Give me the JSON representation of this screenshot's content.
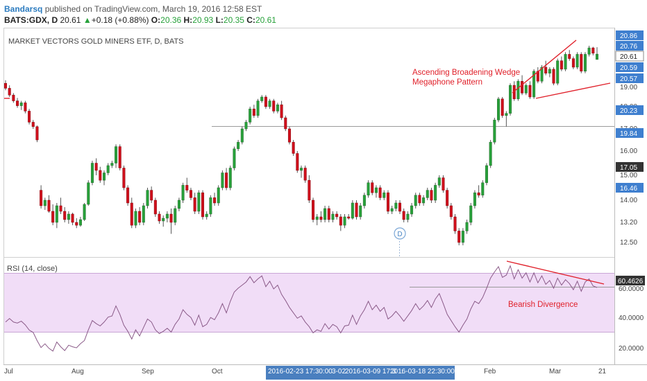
{
  "header": {
    "user": "Bandarsq",
    "published": "published on TradingView.com, March 19, 2016 12:58 EST",
    "symbol": "BATS:GDX, D",
    "last": "20.61",
    "change": "+0.18 (+0.88%)",
    "open_label": "O:",
    "open": "20.36",
    "high_label": "H:",
    "high": "20.93",
    "low_label": "L:",
    "low": "20.35",
    "close_label": "C:",
    "close": "20.61"
  },
  "colors": {
    "up": "#27a13a",
    "down": "#d0101c",
    "annotation": "#e0202a",
    "price_badge": "#3f7fcf",
    "rsi_line": "#8a5a88",
    "rsi_band": "#f1ddf7"
  },
  "chart_data": [
    {
      "type": "candlestick",
      "title": "MARKET VECTORS GOLD MINERS ETF, D, BATS",
      "y_tick_labels": [
        "12.50",
        "13.20",
        "14.00",
        "15.00",
        "16.00",
        "17.00",
        "18.00",
        "19.00"
      ],
      "x_tick_labels": [
        "Jul",
        "Aug",
        "Sep",
        "Oct",
        "Feb",
        "Mar",
        "21"
      ],
      "price_badges": [
        {
          "text": "20.86",
          "style": "blue"
        },
        {
          "text": "20.76",
          "style": "blue"
        },
        {
          "text": "20.61",
          "style": "white"
        },
        {
          "text": "20.59",
          "style": "blue"
        },
        {
          "text": "20.57",
          "style": "blue"
        },
        {
          "text": "20.23",
          "style": "blue"
        },
        {
          "text": "19.84",
          "style": "blue"
        },
        {
          "text": "17.05",
          "style": "dark"
        },
        {
          "text": "16.46",
          "style": "blue"
        }
      ],
      "annotations": [
        "Ascending Broadening Wedge",
        "Megaphone Pattern"
      ],
      "event_marker": "D",
      "time_labels": [
        "2016-02-23 17:30:00",
        "3-02",
        "2016-03-09 17:3",
        ":",
        "2016-03-18 22:30:00"
      ],
      "candles": [
        [
          19.2,
          19.35,
          18.85,
          18.95
        ],
        [
          18.95,
          19.1,
          18.5,
          18.6
        ],
        [
          18.6,
          18.7,
          18.2,
          18.3
        ],
        [
          18.3,
          18.45,
          17.95,
          18.05
        ],
        [
          18.05,
          18.3,
          17.85,
          18.2
        ],
        [
          18.2,
          18.3,
          17.7,
          17.8
        ],
        [
          17.8,
          17.9,
          17.2,
          17.3
        ],
        [
          17.3,
          17.4,
          17.0,
          17.1
        ],
        [
          17.1,
          17.15,
          16.4,
          16.5
        ],
        [
          14.4,
          14.6,
          13.7,
          13.8
        ],
        [
          13.8,
          14.1,
          13.65,
          14.0
        ],
        [
          14.0,
          14.2,
          13.55,
          13.6
        ],
        [
          13.6,
          13.85,
          13.1,
          13.2
        ],
        [
          13.2,
          13.9,
          13.0,
          13.8
        ],
        [
          13.8,
          14.1,
          13.5,
          13.6
        ],
        [
          13.6,
          13.75,
          13.2,
          13.3
        ],
        [
          13.3,
          13.6,
          13.15,
          13.5
        ],
        [
          13.5,
          13.55,
          13.1,
          13.2
        ],
        [
          13.2,
          13.35,
          13.0,
          13.1
        ],
        [
          13.1,
          13.4,
          13.05,
          13.3
        ],
        [
          13.3,
          13.9,
          13.25,
          13.85
        ],
        [
          13.85,
          14.8,
          13.8,
          14.7
        ],
        [
          14.7,
          15.6,
          14.6,
          15.5
        ],
        [
          15.5,
          15.7,
          15.0,
          15.2
        ],
        [
          15.2,
          15.35,
          14.7,
          14.8
        ],
        [
          14.8,
          15.2,
          14.6,
          15.1
        ],
        [
          15.1,
          15.5,
          15.0,
          15.4
        ],
        [
          15.4,
          15.6,
          15.3,
          15.5
        ],
        [
          15.5,
          16.3,
          15.3,
          16.2
        ],
        [
          16.2,
          16.3,
          15.2,
          15.3
        ],
        [
          15.3,
          15.4,
          14.4,
          14.5
        ],
        [
          14.5,
          14.6,
          13.8,
          13.9
        ],
        [
          13.9,
          14.1,
          13.0,
          13.1
        ],
        [
          13.1,
          13.7,
          13.0,
          13.6
        ],
        [
          13.6,
          13.75,
          13.1,
          13.2
        ],
        [
          13.2,
          13.9,
          13.1,
          13.8
        ],
        [
          13.8,
          14.5,
          13.7,
          14.4
        ],
        [
          14.4,
          14.55,
          13.9,
          14.0
        ],
        [
          14.0,
          14.1,
          13.4,
          13.5
        ],
        [
          13.5,
          13.6,
          13.15,
          13.25
        ],
        [
          13.25,
          13.45,
          13.05,
          13.35
        ],
        [
          13.35,
          13.6,
          13.2,
          13.5
        ],
        [
          13.5,
          13.7,
          12.8,
          13.2
        ],
        [
          13.2,
          13.8,
          13.1,
          13.7
        ],
        [
          13.7,
          14.1,
          13.6,
          14.0
        ],
        [
          14.0,
          14.7,
          13.9,
          14.6
        ],
        [
          14.6,
          14.9,
          14.3,
          14.4
        ],
        [
          14.4,
          14.5,
          14.0,
          14.1
        ],
        [
          14.1,
          14.3,
          13.5,
          13.6
        ],
        [
          13.6,
          14.4,
          13.5,
          14.3
        ],
        [
          14.3,
          14.4,
          13.3,
          13.4
        ],
        [
          13.4,
          13.6,
          13.3,
          13.5
        ],
        [
          13.5,
          14.2,
          13.4,
          14.1
        ],
        [
          14.1,
          14.3,
          13.8,
          13.9
        ],
        [
          13.9,
          14.6,
          13.8,
          14.5
        ],
        [
          14.5,
          15.2,
          14.4,
          15.1
        ],
        [
          15.1,
          15.3,
          14.4,
          14.5
        ],
        [
          14.5,
          15.4,
          14.4,
          15.3
        ],
        [
          15.3,
          16.2,
          15.2,
          16.1
        ],
        [
          16.1,
          16.5,
          16.0,
          16.4
        ],
        [
          16.4,
          17.1,
          16.3,
          17.0
        ],
        [
          17.0,
          17.4,
          16.9,
          17.3
        ],
        [
          17.3,
          18.0,
          17.2,
          17.9
        ],
        [
          17.9,
          18.1,
          17.5,
          17.6
        ],
        [
          17.6,
          18.4,
          17.5,
          18.3
        ],
        [
          18.3,
          18.6,
          18.2,
          18.5
        ],
        [
          18.5,
          18.6,
          17.9,
          18.0
        ],
        [
          18.0,
          18.4,
          17.9,
          18.3
        ],
        [
          18.3,
          18.4,
          17.7,
          17.8
        ],
        [
          17.8,
          18.2,
          17.7,
          18.1
        ],
        [
          18.1,
          18.3,
          17.4,
          17.5
        ],
        [
          17.5,
          17.6,
          16.9,
          17.0
        ],
        [
          17.0,
          17.1,
          16.3,
          16.4
        ],
        [
          16.4,
          16.5,
          15.8,
          15.9
        ],
        [
          15.9,
          16.0,
          15.1,
          15.2
        ],
        [
          15.2,
          15.4,
          14.9,
          15.3
        ],
        [
          15.3,
          15.4,
          14.7,
          14.8
        ],
        [
          14.8,
          15.0,
          13.9,
          14.0
        ],
        [
          14.0,
          14.1,
          13.2,
          13.3
        ],
        [
          13.3,
          13.5,
          13.1,
          13.4
        ],
        [
          13.4,
          13.6,
          13.2,
          13.3
        ],
        [
          13.3,
          13.8,
          13.2,
          13.7
        ],
        [
          13.7,
          13.8,
          13.2,
          13.3
        ],
        [
          13.3,
          13.6,
          13.2,
          13.5
        ],
        [
          13.5,
          13.6,
          13.3,
          13.4
        ],
        [
          13.4,
          13.5,
          12.9,
          13.1
        ],
        [
          13.1,
          13.5,
          13.0,
          13.4
        ],
        [
          13.4,
          13.5,
          13.3,
          13.35
        ],
        [
          13.35,
          14.0,
          13.3,
          13.9
        ],
        [
          13.9,
          14.0,
          13.3,
          13.4
        ],
        [
          13.4,
          13.9,
          13.3,
          13.8
        ],
        [
          13.8,
          14.3,
          13.7,
          14.2
        ],
        [
          14.2,
          14.8,
          14.1,
          14.7
        ],
        [
          14.7,
          14.8,
          14.2,
          14.3
        ],
        [
          14.3,
          14.6,
          14.1,
          14.5
        ],
        [
          14.5,
          14.6,
          14.0,
          14.1
        ],
        [
          14.1,
          14.4,
          14.0,
          14.3
        ],
        [
          14.3,
          14.4,
          13.5,
          13.6
        ],
        [
          13.6,
          13.8,
          13.5,
          13.7
        ],
        [
          13.7,
          14.0,
          13.6,
          13.9
        ],
        [
          13.9,
          14.0,
          13.5,
          13.6
        ],
        [
          13.6,
          13.7,
          13.2,
          13.3
        ],
        [
          13.3,
          13.6,
          13.2,
          13.5
        ],
        [
          13.5,
          13.9,
          13.4,
          13.8
        ],
        [
          13.8,
          14.3,
          13.7,
          14.2
        ],
        [
          14.2,
          14.3,
          13.8,
          13.9
        ],
        [
          13.9,
          14.2,
          13.8,
          14.1
        ],
        [
          14.1,
          14.5,
          14.0,
          14.4
        ],
        [
          14.4,
          14.5,
          13.9,
          14.0
        ],
        [
          14.0,
          14.7,
          13.9,
          14.6
        ],
        [
          14.6,
          15.0,
          14.5,
          14.9
        ],
        [
          14.9,
          15.0,
          14.3,
          14.4
        ],
        [
          14.4,
          14.5,
          13.7,
          13.8
        ],
        [
          13.8,
          13.9,
          13.3,
          13.4
        ],
        [
          13.4,
          13.5,
          12.8,
          12.9
        ],
        [
          12.9,
          13.0,
          12.4,
          12.5
        ],
        [
          12.5,
          13.0,
          12.4,
          12.9
        ],
        [
          12.9,
          13.3,
          12.8,
          13.2
        ],
        [
          13.2,
          13.9,
          13.1,
          13.8
        ],
        [
          13.8,
          14.4,
          13.7,
          14.3
        ],
        [
          14.3,
          14.6,
          14.1,
          14.2
        ],
        [
          14.2,
          14.8,
          14.1,
          14.7
        ],
        [
          14.7,
          15.5,
          14.6,
          15.4
        ],
        [
          15.4,
          16.5,
          15.3,
          16.4
        ],
        [
          16.4,
          17.5,
          16.3,
          17.4
        ],
        [
          17.4,
          18.5,
          17.3,
          18.4
        ],
        [
          18.4,
          18.5,
          17.5,
          17.6
        ],
        [
          17.6,
          17.8,
          17.1,
          17.7
        ],
        [
          17.7,
          19.2,
          17.6,
          19.1
        ],
        [
          19.1,
          19.3,
          18.3,
          18.4
        ],
        [
          18.4,
          19.4,
          18.3,
          19.3
        ],
        [
          19.3,
          19.6,
          18.6,
          18.7
        ],
        [
          18.7,
          19.2,
          18.6,
          19.1
        ],
        [
          19.1,
          19.3,
          18.4,
          18.5
        ],
        [
          18.5,
          19.9,
          18.4,
          19.8
        ],
        [
          19.8,
          20.0,
          19.2,
          19.3
        ],
        [
          19.3,
          20.1,
          19.2,
          20.0
        ],
        [
          20.0,
          20.3,
          19.6,
          19.7
        ],
        [
          19.7,
          20.0,
          19.5,
          19.9
        ],
        [
          19.9,
          20.0,
          19.1,
          19.2
        ],
        [
          19.2,
          20.4,
          19.1,
          20.3
        ],
        [
          20.3,
          20.5,
          19.8,
          19.9
        ],
        [
          19.9,
          20.7,
          19.8,
          20.6
        ],
        [
          20.6,
          20.8,
          20.3,
          20.4
        ],
        [
          20.4,
          20.5,
          19.9,
          20.0
        ],
        [
          20.0,
          20.7,
          19.9,
          20.6
        ],
        [
          20.6,
          20.7,
          19.7,
          19.8
        ],
        [
          19.8,
          20.7,
          19.7,
          20.6
        ],
        [
          20.6,
          21.0,
          20.5,
          20.9
        ],
        [
          20.9,
          20.95,
          20.55,
          20.65
        ],
        [
          20.36,
          20.93,
          20.35,
          20.61
        ]
      ]
    },
    {
      "type": "line",
      "title": "RSI (14, close)",
      "y_tick_labels": [
        "20.0000",
        "40.0000",
        "60.0000"
      ],
      "badge": "60.4626",
      "annotation": "Bearish Divergence",
      "values": [
        38.0,
        40.3,
        38.0,
        37.4,
        38.6,
        36.2,
        32.8,
        31.3,
        26.0,
        21.5,
        23.9,
        21.0,
        19.2,
        25.1,
        22.0,
        19.5,
        23.0,
        22.0,
        21.3,
        24.0,
        26.0,
        33.0,
        39.0,
        37.0,
        35.5,
        38.0,
        41.2,
        42.0,
        48.5,
        43.0,
        36.0,
        32.0,
        27.0,
        33.0,
        29.0,
        34.5,
        40.0,
        38.0,
        33.0,
        30.5,
        32.0,
        34.0,
        31.5,
        36.5,
        40.0,
        46.0,
        43.0,
        41.0,
        36.0,
        42.5,
        35.0,
        36.5,
        41.0,
        39.5,
        44.0,
        50.0,
        44.0,
        51.5,
        57.5,
        60.0,
        62.0,
        64.0,
        67.5,
        63.5,
        66.0,
        68.0,
        61.0,
        64.5,
        59.5,
        62.0,
        56.0,
        52.0,
        47.5,
        44.0,
        40.5,
        42.0,
        38.0,
        35.0,
        31.0,
        33.0,
        32.0,
        37.0,
        33.5,
        36.5,
        35.0,
        31.0,
        35.5,
        36.0,
        42.5,
        36.5,
        42.0,
        46.0,
        51.5,
        46.0,
        49.0,
        45.0,
        47.5,
        40.0,
        42.0,
        45.0,
        42.0,
        38.5,
        42.0,
        45.5,
        50.0,
        46.0,
        48.5,
        52.0,
        47.5,
        53.0,
        56.5,
        50.0,
        43.0,
        39.0,
        35.0,
        31.5,
        36.0,
        40.0,
        46.5,
        51.5,
        50.0,
        54.0,
        60.0,
        66.5,
        70.5,
        74.0,
        67.0,
        68.5,
        74.5,
        66.0,
        72.0,
        66.5,
        70.0,
        64.0,
        70.0,
        63.5,
        68.0,
        62.5,
        65.0,
        60.0,
        66.5,
        62.0,
        65.5,
        63.0,
        59.0,
        64.5,
        58.0,
        64.0,
        66.0,
        61.5,
        60.4626
      ]
    }
  ]
}
